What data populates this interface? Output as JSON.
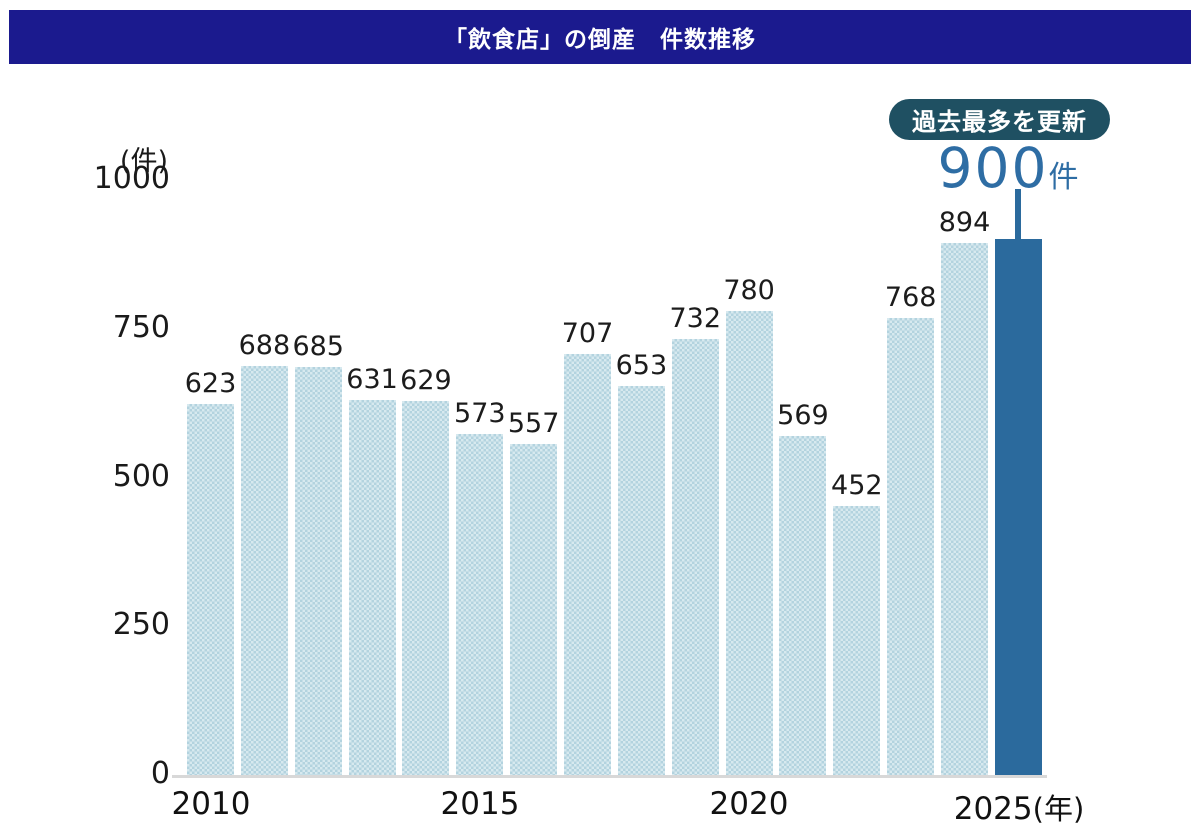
{
  "header": {
    "title": "「飲食店」の倒産　件数推移"
  },
  "axis": {
    "unit_label": "(件)",
    "y_ticks": [
      "1000",
      "750",
      "500",
      "250",
      "0"
    ],
    "x_ticks": [
      "2010",
      "2015",
      "2020",
      "2025"
    ],
    "x_suffix": "(年)"
  },
  "callout": {
    "badge": "過去最多を更新",
    "value": "900",
    "unit": "件"
  },
  "chart_data": {
    "type": "bar",
    "title": "「飲食店」の倒産　件数推移",
    "categories": [
      2010,
      2011,
      2012,
      2013,
      2014,
      2015,
      2016,
      2017,
      2018,
      2019,
      2020,
      2021,
      2022,
      2023,
      2024,
      2025
    ],
    "values": [
      623,
      688,
      685,
      631,
      629,
      573,
      557,
      707,
      653,
      732,
      780,
      569,
      452,
      768,
      894,
      900
    ],
    "highlight_index": 15,
    "highlight_annotation": "過去最多を更新 900件",
    "xlabel": "(年)",
    "ylabel": "(件)",
    "ylim": [
      0,
      1000
    ],
    "y_tick_step": 250,
    "grid": false,
    "legend": false,
    "colors": {
      "header_bg": "#1b1a8e",
      "bar_fill": "#d7e9ef",
      "bar_pattern": "#b3d3df",
      "highlight_bar": "#2b6a9d",
      "callout_text": "#2e6da4",
      "badge_bg": "#1f5062",
      "axis_line": "#d8d8d8",
      "label_text": "#1c1c1c"
    }
  }
}
